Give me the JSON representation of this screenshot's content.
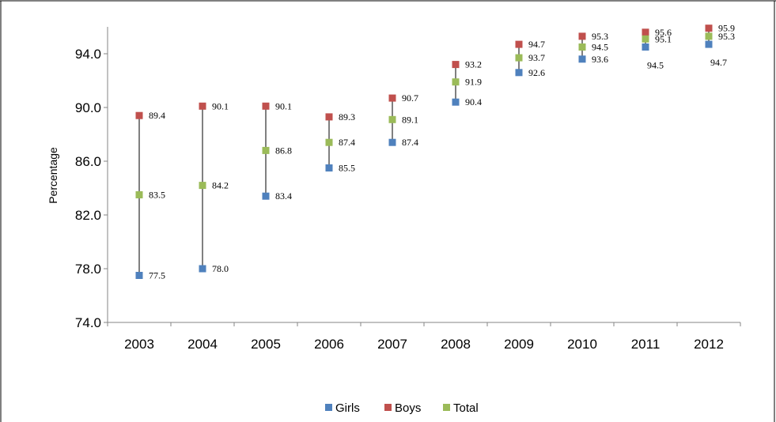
{
  "chart_data": {
    "type": "scatter",
    "title": "",
    "xlabel": "",
    "ylabel": "Percentage",
    "categories": [
      "2003",
      "2004",
      "2005",
      "2006",
      "2007",
      "2008",
      "2009",
      "2010",
      "2011",
      "2012"
    ],
    "ylim": [
      74.0,
      96.0
    ],
    "yticks": [
      "74.0",
      "78.0",
      "82.0",
      "86.0",
      "90.0",
      "94.0"
    ],
    "grid": false,
    "legend_position": "bottom",
    "series": [
      {
        "name": "Girls",
        "color": "#4F81BD",
        "values": [
          77.5,
          78.0,
          83.4,
          85.5,
          87.4,
          90.4,
          92.6,
          93.6,
          94.5,
          94.7
        ]
      },
      {
        "name": "Boys",
        "color": "#C0504D",
        "values": [
          89.4,
          90.1,
          90.1,
          89.3,
          90.7,
          93.2,
          94.7,
          95.3,
          95.6,
          95.9
        ]
      },
      {
        "name": "Total",
        "color": "#9BBB59",
        "values": [
          83.5,
          84.2,
          86.8,
          87.4,
          89.1,
          91.9,
          93.7,
          94.5,
          95.1,
          95.3
        ]
      }
    ],
    "data_labels": {
      "Girls": [
        "77.5",
        "78.0",
        "83.4",
        "85.5",
        "87.4",
        "90.4",
        "92.6",
        "93.6",
        "94.5",
        "94.7"
      ],
      "Boys": [
        "89.4",
        "90.1",
        "90.1",
        "89.3",
        "90.7",
        "93.2",
        "94.7",
        "95.3",
        "95.6",
        "95.9"
      ],
      "Total": [
        "83.5",
        "84.2",
        "86.8",
        "87.4",
        "89.1",
        "91.9",
        "93.7",
        "94.5",
        "95.1",
        "95.3"
      ]
    }
  }
}
